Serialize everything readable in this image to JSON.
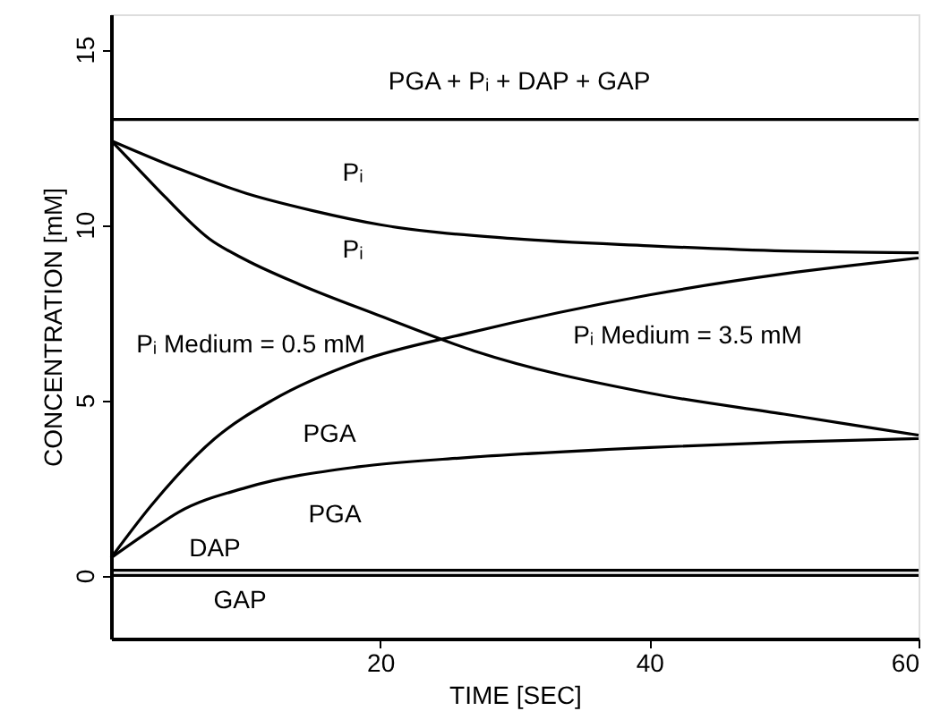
{
  "chart_data": {
    "type": "line",
    "xlabel": "TIME [SEC]",
    "ylabel": "CONCENTRATION [mM]",
    "xlim": [
      0,
      60
    ],
    "xticks": [
      20,
      40,
      60
    ],
    "ylim": [
      -1.8,
      16
    ],
    "yticks": [
      0,
      5,
      10,
      15
    ],
    "grid": false,
    "marker": "none",
    "line_style": "solid",
    "series": [
      {
        "color": "#000000",
        "x": [
          0,
          60
        ],
        "values": [
          13.0,
          13.0
        ]
      },
      {
        "color": "#000000",
        "x": [
          0,
          5,
          10,
          15,
          20,
          30,
          40,
          50,
          60
        ],
        "values": [
          12.4,
          11.6,
          10.9,
          10.4,
          10.0,
          9.6,
          9.4,
          9.25,
          9.2
        ]
      },
      {
        "color": "#000000",
        "x": [
          0,
          2,
          4,
          7.3,
          10,
          14,
          20,
          27,
          40,
          50,
          60
        ],
        "values": [
          12.4,
          11.6,
          10.8,
          9.6,
          9.0,
          8.3,
          7.4,
          6.4,
          5.2,
          4.6,
          4.0
        ]
      },
      {
        "color": "#000000",
        "x": [
          0,
          3,
          7.7,
          12,
          18.4,
          26.4,
          40,
          50,
          60
        ],
        "values": [
          0.5,
          2.0,
          3.9,
          5.0,
          6.1,
          6.9,
          8.0,
          8.6,
          9.05
        ]
      },
      {
        "color": "#000000",
        "x": [
          0,
          3,
          5,
          10,
          18.4,
          26,
          40,
          50,
          60
        ],
        "values": [
          0.5,
          1.3,
          1.8,
          2.5,
          3.1,
          3.35,
          3.65,
          3.8,
          3.9
        ]
      },
      {
        "color": "#000000",
        "x": [
          0,
          60
        ],
        "values": [
          0.15,
          0.15
        ]
      },
      {
        "color": "#000000",
        "x": [
          0,
          60
        ],
        "values": [
          0.0,
          0.0
        ]
      }
    ],
    "annotations": [
      "PGA + Pᵢ + DAP + GAP",
      "Pᵢ",
      "Pᵢ",
      "Pᵢ Medium = 0.5 mM",
      "Pᵢ Medium = 3.5 mM",
      "PGA",
      "PGA",
      "DAP",
      "GAP"
    ]
  }
}
